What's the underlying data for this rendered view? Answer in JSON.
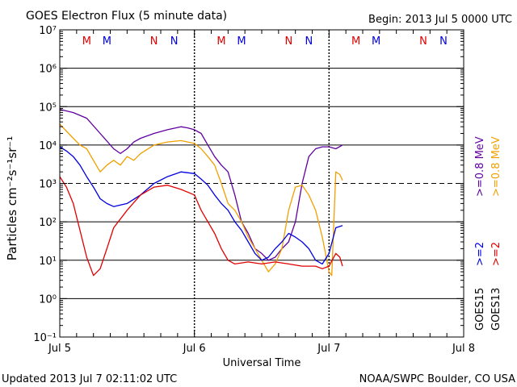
{
  "header": {
    "title": "GOES Electron Flux (5 minute data)",
    "begin": "Begin: 2013 Jul 5 0000 UTC"
  },
  "footer": {
    "updated": "Updated 2013 Jul  7 02:11:02 UTC",
    "credit": "NOAA/SWPC Boulder, CO USA"
  },
  "colors": {
    "red": "#e00000",
    "blue": "#0000e0",
    "purple": "#6000a0",
    "orange": "#f0a000",
    "black": "#000000"
  },
  "chart_data": {
    "type": "line",
    "title": "GOES Electron Flux (5 minute data)",
    "xlabel": "Universal Time",
    "ylabel": "Particles cm⁻²s⁻¹sr⁻¹",
    "x_ticks": [
      "Jul 5",
      "Jul 6",
      "Jul 7",
      "Jul 8"
    ],
    "y_ticks": [
      "10⁷",
      "10⁶",
      "10⁵",
      "10⁴",
      "10³",
      "10²",
      "10¹",
      "10⁰",
      "10⁻¹"
    ],
    "y_scale": "log",
    "ylim": [
      0.1,
      10000000
    ],
    "xlim": [
      0,
      3
    ],
    "threshold_line": 1000,
    "grid": true,
    "mn_markers": {
      "days": [
        0,
        1,
        2
      ],
      "items": [
        {
          "label": "M",
          "offset": 0.2,
          "color": "red"
        },
        {
          "label": "M",
          "offset": 0.35,
          "color": "blue"
        },
        {
          "label": "N",
          "offset": 0.7,
          "color": "red"
        },
        {
          "label": "N",
          "offset": 0.85,
          "color": "blue"
        }
      ]
    },
    "legend": {
      "satellites": [
        "GOES15",
        "GOES13"
      ],
      "groups": [
        {
          "series": "red",
          "text": ">=2"
        },
        {
          "series": "blue",
          "text": ">=2"
        },
        {
          "series": "purple",
          "text": ">=0.8 MeV"
        },
        {
          "series": "orange",
          "text": ">=0.8 MeV"
        }
      ]
    },
    "series": [
      {
        "color": "purple",
        "values": [
          [
            0,
            85000
          ],
          [
            0.1,
            70000
          ],
          [
            0.2,
            50000
          ],
          [
            0.3,
            20000
          ],
          [
            0.4,
            8000
          ],
          [
            0.45,
            6000
          ],
          [
            0.5,
            8000
          ],
          [
            0.55,
            12000
          ],
          [
            0.6,
            15000
          ],
          [
            0.7,
            20000
          ],
          [
            0.8,
            25000
          ],
          [
            0.9,
            30000
          ],
          [
            0.95,
            28000
          ],
          [
            1.0,
            25000
          ],
          [
            1.05,
            20000
          ],
          [
            1.1,
            10000
          ],
          [
            1.15,
            5000
          ],
          [
            1.2,
            3000
          ],
          [
            1.25,
            2000
          ],
          [
            1.3,
            500
          ],
          [
            1.35,
            100
          ],
          [
            1.4,
            50
          ],
          [
            1.45,
            20
          ],
          [
            1.5,
            15
          ],
          [
            1.55,
            10
          ],
          [
            1.6,
            12
          ],
          [
            1.65,
            20
          ],
          [
            1.7,
            30
          ],
          [
            1.75,
            100
          ],
          [
            1.8,
            1000
          ],
          [
            1.85,
            5000
          ],
          [
            1.9,
            8000
          ],
          [
            1.95,
            9000
          ],
          [
            2.0,
            9000
          ],
          [
            2.05,
            8000
          ],
          [
            2.1,
            10000
          ]
        ]
      },
      {
        "color": "orange",
        "values": [
          [
            0,
            35000
          ],
          [
            0.1,
            15000
          ],
          [
            0.15,
            10000
          ],
          [
            0.2,
            8000
          ],
          [
            0.3,
            2000
          ],
          [
            0.35,
            3000
          ],
          [
            0.4,
            4000
          ],
          [
            0.45,
            3000
          ],
          [
            0.5,
            5000
          ],
          [
            0.55,
            4000
          ],
          [
            0.6,
            6000
          ],
          [
            0.7,
            10000
          ],
          [
            0.8,
            12000
          ],
          [
            0.9,
            13000
          ],
          [
            1.0,
            11000
          ],
          [
            1.05,
            8000
          ],
          [
            1.1,
            5000
          ],
          [
            1.15,
            3000
          ],
          [
            1.2,
            1000
          ],
          [
            1.25,
            300
          ],
          [
            1.3,
            200
          ],
          [
            1.35,
            100
          ],
          [
            1.4,
            40
          ],
          [
            1.45,
            20
          ],
          [
            1.5,
            10
          ],
          [
            1.55,
            5
          ],
          [
            1.6,
            8
          ],
          [
            1.65,
            20
          ],
          [
            1.7,
            200
          ],
          [
            1.75,
            800
          ],
          [
            1.8,
            900
          ],
          [
            1.85,
            500
          ],
          [
            1.9,
            200
          ],
          [
            1.95,
            40
          ],
          [
            2.0,
            5
          ],
          [
            2.02,
            4
          ],
          [
            2.05,
            2000
          ],
          [
            2.08,
            1700
          ],
          [
            2.1,
            1200
          ]
        ]
      },
      {
        "color": "blue",
        "values": [
          [
            0,
            9000
          ],
          [
            0.05,
            7000
          ],
          [
            0.1,
            5000
          ],
          [
            0.15,
            3000
          ],
          [
            0.2,
            1500
          ],
          [
            0.25,
            800
          ],
          [
            0.3,
            400
          ],
          [
            0.35,
            300
          ],
          [
            0.4,
            250
          ],
          [
            0.5,
            300
          ],
          [
            0.6,
            500
          ],
          [
            0.7,
            1000
          ],
          [
            0.8,
            1500
          ],
          [
            0.9,
            2000
          ],
          [
            1.0,
            1800
          ],
          [
            1.05,
            1300
          ],
          [
            1.1,
            900
          ],
          [
            1.15,
            500
          ],
          [
            1.2,
            300
          ],
          [
            1.25,
            200
          ],
          [
            1.3,
            100
          ],
          [
            1.35,
            60
          ],
          [
            1.4,
            30
          ],
          [
            1.45,
            15
          ],
          [
            1.5,
            10
          ],
          [
            1.55,
            12
          ],
          [
            1.6,
            20
          ],
          [
            1.65,
            30
          ],
          [
            1.7,
            50
          ],
          [
            1.75,
            40
          ],
          [
            1.8,
            30
          ],
          [
            1.85,
            20
          ],
          [
            1.9,
            10
          ],
          [
            1.95,
            8
          ],
          [
            2.0,
            15
          ],
          [
            2.05,
            70
          ],
          [
            2.1,
            80
          ]
        ]
      },
      {
        "color": "red",
        "values": [
          [
            0,
            1500
          ],
          [
            0.05,
            800
          ],
          [
            0.1,
            300
          ],
          [
            0.15,
            60
          ],
          [
            0.2,
            12
          ],
          [
            0.25,
            4
          ],
          [
            0.3,
            6
          ],
          [
            0.35,
            20
          ],
          [
            0.4,
            70
          ],
          [
            0.5,
            200
          ],
          [
            0.6,
            500
          ],
          [
            0.7,
            800
          ],
          [
            0.8,
            900
          ],
          [
            0.9,
            700
          ],
          [
            1.0,
            500
          ],
          [
            1.05,
            200
          ],
          [
            1.1,
            100
          ],
          [
            1.15,
            50
          ],
          [
            1.2,
            20
          ],
          [
            1.25,
            10
          ],
          [
            1.3,
            8
          ],
          [
            1.4,
            9
          ],
          [
            1.5,
            8
          ],
          [
            1.6,
            9
          ],
          [
            1.7,
            8
          ],
          [
            1.8,
            7
          ],
          [
            1.9,
            7
          ],
          [
            1.95,
            6
          ],
          [
            2.0,
            7
          ],
          [
            2.05,
            15
          ],
          [
            2.08,
            12
          ],
          [
            2.1,
            7
          ]
        ]
      }
    ]
  }
}
